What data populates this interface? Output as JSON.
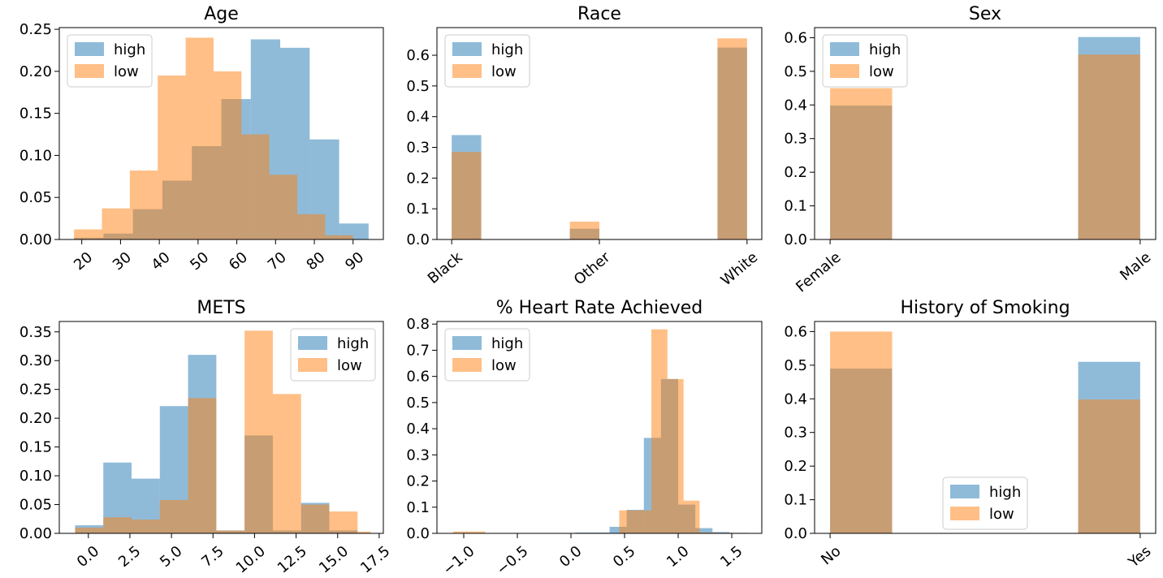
{
  "colors": {
    "high": "#1f77b4",
    "low": "#ff7f0e",
    "alpha": 0.5
  },
  "chart_data": [
    {
      "type": "bar",
      "title": "Age",
      "xlim": [
        14.2,
        97.8
      ],
      "ylim": [
        0,
        0.252
      ],
      "xticks": [
        20,
        30,
        40,
        50,
        60,
        70,
        80,
        90
      ],
      "xtick_labels": [
        "20",
        "30",
        "40",
        "50",
        "60",
        "70",
        "80",
        "90"
      ],
      "xtick_rotation": 40,
      "yticks": [
        0,
        0.05,
        0.1,
        0.15,
        0.2,
        0.25
      ],
      "ytick_labels": [
        "0.00",
        "0.05",
        "0.10",
        "0.15",
        "0.20",
        "0.25"
      ],
      "legend": "upper left",
      "series": [
        {
          "name": "high",
          "edges": [
            18,
            25.6,
            33.2,
            40.8,
            48.4,
            56,
            63.6,
            71.2,
            78.8,
            86.4,
            94
          ],
          "values": [
            0.002,
            0.007,
            0.036,
            0.07,
            0.111,
            0.167,
            0.238,
            0.228,
            0.119,
            0.019
          ]
        },
        {
          "name": "low",
          "edges": [
            18,
            25.2,
            32.4,
            39.6,
            46.8,
            54,
            61.2,
            68.4,
            75.6,
            82.8,
            90
          ],
          "values": [
            0.012,
            0.037,
            0.082,
            0.195,
            0.24,
            0.2,
            0.125,
            0.077,
            0.03,
            0.005
          ]
        }
      ]
    },
    {
      "type": "bar",
      "title": "Race",
      "xlim": [
        -0.1,
        2.1
      ],
      "ylim": [
        0,
        0.69
      ],
      "xticks": [
        0,
        1,
        2
      ],
      "xtick_labels": [
        "Black",
        "Other",
        "White"
      ],
      "xtick_rotation": 40,
      "yticks": [
        0,
        0.1,
        0.2,
        0.3,
        0.4,
        0.5,
        0.6
      ],
      "ytick_labels": [
        "0.0",
        "0.1",
        "0.2",
        "0.3",
        "0.4",
        "0.5",
        "0.6"
      ],
      "legend": "upper left",
      "series": [
        {
          "name": "high",
          "edges": [
            0,
            0.2,
            0.4,
            0.6,
            0.8,
            1.0,
            1.2,
            1.4,
            1.6,
            1.8,
            2.0
          ],
          "values": [
            0.34,
            0,
            0,
            0,
            0.035,
            0,
            0,
            0,
            0,
            0.625
          ]
        },
        {
          "name": "low",
          "edges": [
            0,
            0.2,
            0.4,
            0.6,
            0.8,
            1.0,
            1.2,
            1.4,
            1.6,
            1.8,
            2.0
          ],
          "values": [
            0.285,
            0,
            0,
            0,
            0.058,
            0,
            0,
            0,
            0,
            0.655
          ]
        }
      ]
    },
    {
      "type": "bar",
      "title": "Sex",
      "xlim": [
        -0.05,
        1.05
      ],
      "ylim": [
        0,
        0.63
      ],
      "xticks": [
        0,
        1
      ],
      "xtick_labels": [
        "Female",
        "Male"
      ],
      "xtick_rotation": 40,
      "yticks": [
        0,
        0.1,
        0.2,
        0.3,
        0.4,
        0.5,
        0.6
      ],
      "ytick_labels": [
        "0.0",
        "0.1",
        "0.2",
        "0.3",
        "0.4",
        "0.5",
        "0.6"
      ],
      "legend": "upper left",
      "series": [
        {
          "name": "high",
          "edges": [
            0,
            0.2,
            0.4,
            0.6,
            0.8,
            1.0
          ],
          "values": [
            0.398,
            0,
            0,
            0,
            0.602
          ]
        },
        {
          "name": "low",
          "edges": [
            0,
            0.2,
            0.4,
            0.6,
            0.8,
            1.0
          ],
          "values": [
            0.45,
            0,
            0,
            0,
            0.55
          ]
        }
      ]
    },
    {
      "type": "bar",
      "title": "METS",
      "xlim": [
        -1.75,
        17.75
      ],
      "ylim": [
        0,
        0.368
      ],
      "xticks": [
        0,
        2.5,
        5,
        7.5,
        10,
        12.5,
        15,
        17.5
      ],
      "xtick_labels": [
        "0.0",
        "2.5",
        "5.0",
        "7.5",
        "10.0",
        "12.5",
        "15.0",
        "17.5"
      ],
      "xtick_rotation": 40,
      "yticks": [
        0,
        0.05,
        0.1,
        0.15,
        0.2,
        0.25,
        0.3,
        0.35
      ],
      "ytick_labels": [
        "0.00",
        "0.05",
        "0.10",
        "0.15",
        "0.20",
        "0.25",
        "0.30",
        "0.35"
      ],
      "legend": "upper right",
      "series": [
        {
          "name": "high",
          "edges": [
            -0.8,
            0.9,
            2.6,
            4.3,
            6.0,
            7.7,
            9.4,
            11.1,
            12.8,
            14.5,
            16.2
          ],
          "values": [
            0.014,
            0.123,
            0.095,
            0.221,
            0.31,
            0.005,
            0.17,
            0.005,
            0.053,
            0.005
          ]
        },
        {
          "name": "low",
          "edges": [
            -0.8,
            0.9,
            2.6,
            4.3,
            6.0,
            7.7,
            9.4,
            11.1,
            12.8,
            14.5,
            16.2,
            17.0
          ],
          "values": [
            0.01,
            0.028,
            0.024,
            0.058,
            0.235,
            0.005,
            0.352,
            0.242,
            0.05,
            0.038,
            0.003
          ]
        }
      ]
    },
    {
      "type": "bar",
      "title": "% Heart Rate Achieved",
      "xlim": [
        -1.25,
        1.78
      ],
      "ylim": [
        0,
        0.81
      ],
      "xticks": [
        -1.0,
        -0.5,
        0.0,
        0.5,
        1.0,
        1.5
      ],
      "xtick_labels": [
        "−1.0",
        "−0.5",
        "0.0",
        "0.5",
        "1.0",
        "1.5"
      ],
      "xtick_rotation": 40,
      "yticks": [
        0,
        0.1,
        0.2,
        0.3,
        0.4,
        0.5,
        0.6,
        0.7,
        0.8
      ],
      "ytick_labels": [
        "0.0",
        "0.1",
        "0.2",
        "0.3",
        "0.4",
        "0.5",
        "0.6",
        "0.7",
        "0.8"
      ],
      "legend": "upper left",
      "series": [
        {
          "name": "high",
          "edges": [
            0.04,
            0.2,
            0.36,
            0.52,
            0.68,
            0.84,
            1.0,
            1.16,
            1.32,
            1.48,
            1.64
          ],
          "values": [
            0.003,
            0.003,
            0.025,
            0.09,
            0.365,
            0.59,
            0.11,
            0.02,
            0.005,
            0.002
          ]
        },
        {
          "name": "low",
          "edges": [
            -1.1,
            -0.8,
            0.45,
            0.6,
            0.75,
            0.9,
            1.05,
            1.2,
            1.35,
            1.5
          ],
          "values": [
            0.007,
            0,
            0.088,
            0.088,
            0.78,
            0.59,
            0.125,
            0.003,
            0.002
          ]
        }
      ]
    },
    {
      "type": "bar",
      "title": "History of Smoking",
      "xlim": [
        -0.05,
        1.05
      ],
      "ylim": [
        0,
        0.63
      ],
      "xticks": [
        0,
        1
      ],
      "xtick_labels": [
        "No",
        "Yes"
      ],
      "xtick_rotation": 40,
      "yticks": [
        0,
        0.1,
        0.2,
        0.3,
        0.4,
        0.5,
        0.6
      ],
      "ytick_labels": [
        "0.0",
        "0.1",
        "0.2",
        "0.3",
        "0.4",
        "0.5",
        "0.6"
      ],
      "legend": "lower center",
      "series": [
        {
          "name": "high",
          "edges": [
            0,
            0.2,
            0.4,
            0.6,
            0.8,
            1.0
          ],
          "values": [
            0.49,
            0,
            0,
            0,
            0.51
          ]
        },
        {
          "name": "low",
          "edges": [
            0,
            0.2,
            0.4,
            0.6,
            0.8,
            1.0
          ],
          "values": [
            0.6,
            0,
            0,
            0,
            0.398
          ]
        }
      ]
    }
  ]
}
